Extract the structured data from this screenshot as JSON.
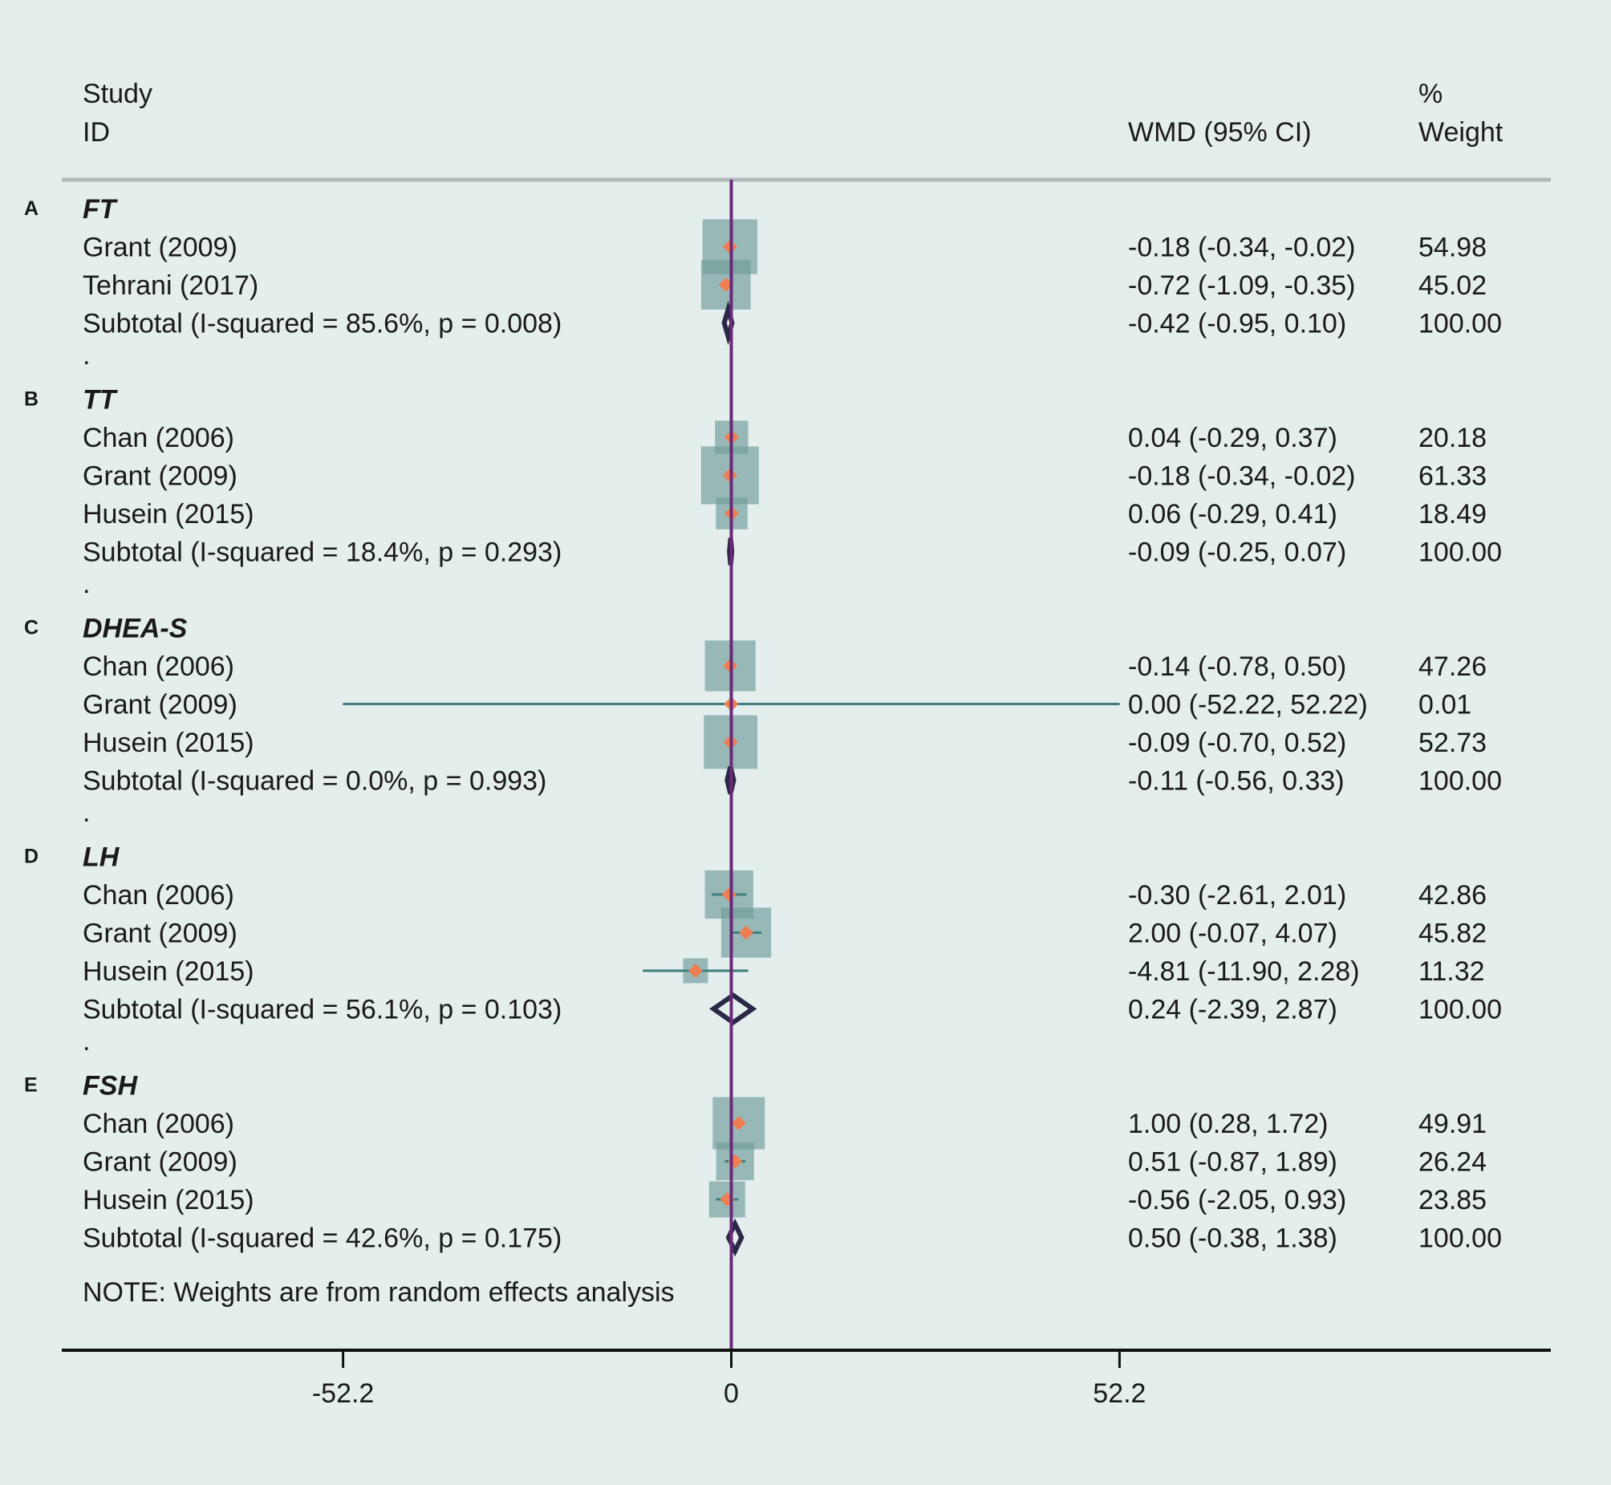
{
  "chart_data": {
    "type": "forest",
    "header": {
      "study_line1": "Study",
      "study_line2": "ID",
      "effect": "WMD (95% CI)",
      "weight_line1": "%",
      "weight_line2": "Weight"
    },
    "groups": [
      {
        "tag": "A",
        "name": "FT",
        "studies": [
          {
            "label": "Grant (2009)",
            "est": -0.18,
            "lo": -0.34,
            "hi": -0.02,
            "ci_text": "-0.18 (-0.34, -0.02)",
            "weight": 54.98,
            "weight_text": "54.98"
          },
          {
            "label": "Tehrani (2017)",
            "est": -0.72,
            "lo": -1.09,
            "hi": -0.35,
            "ci_text": "-0.72 (-1.09, -0.35)",
            "weight": 45.02,
            "weight_text": "45.02"
          }
        ],
        "subtotal": {
          "label": "Subtotal  (I-squared = 85.6%, p = 0.008)",
          "est": -0.42,
          "lo": -0.95,
          "hi": 0.1,
          "ci_text": "-0.42 (-0.95, 0.10)",
          "weight_text": "100.00"
        },
        "separator": "."
      },
      {
        "tag": "B",
        "name": "TT",
        "studies": [
          {
            "label": "Chan (2006)",
            "est": 0.04,
            "lo": -0.29,
            "hi": 0.37,
            "ci_text": "0.04 (-0.29, 0.37)",
            "weight": 20.18,
            "weight_text": "20.18"
          },
          {
            "label": "Grant (2009)",
            "est": -0.18,
            "lo": -0.34,
            "hi": -0.02,
            "ci_text": "-0.18 (-0.34, -0.02)",
            "weight": 61.33,
            "weight_text": "61.33"
          },
          {
            "label": "Husein (2015)",
            "est": 0.06,
            "lo": -0.29,
            "hi": 0.41,
            "ci_text": "0.06 (-0.29, 0.41)",
            "weight": 18.49,
            "weight_text": "18.49"
          }
        ],
        "subtotal": {
          "label": "Subtotal  (I-squared = 18.4%, p = 0.293)",
          "est": -0.09,
          "lo": -0.25,
          "hi": 0.07,
          "ci_text": "-0.09 (-0.25, 0.07)",
          "weight_text": "100.00"
        },
        "separator": "."
      },
      {
        "tag": "C",
        "name": "DHEA-S",
        "studies": [
          {
            "label": "Chan (2006)",
            "est": -0.14,
            "lo": -0.78,
            "hi": 0.5,
            "ci_text": "-0.14 (-0.78, 0.50)",
            "weight": 47.26,
            "weight_text": "47.26"
          },
          {
            "label": "Grant (2009)",
            "est": 0.0,
            "lo": -52.22,
            "hi": 52.22,
            "ci_text": "0.00 (-52.22, 52.22)",
            "weight": 0.01,
            "weight_text": "0.01"
          },
          {
            "label": "Husein (2015)",
            "est": -0.09,
            "lo": -0.7,
            "hi": 0.52,
            "ci_text": "-0.09 (-0.70, 0.52)",
            "weight": 52.73,
            "weight_text": "52.73"
          }
        ],
        "subtotal": {
          "label": "Subtotal  (I-squared = 0.0%, p = 0.993)",
          "est": -0.11,
          "lo": -0.56,
          "hi": 0.33,
          "ci_text": "-0.11 (-0.56, 0.33)",
          "weight_text": "100.00"
        },
        "separator": "."
      },
      {
        "tag": "D",
        "name": "LH",
        "studies": [
          {
            "label": "Chan (2006)",
            "est": -0.3,
            "lo": -2.61,
            "hi": 2.01,
            "ci_text": "-0.30 (-2.61, 2.01)",
            "weight": 42.86,
            "weight_text": "42.86"
          },
          {
            "label": "Grant (2009)",
            "est": 2.0,
            "lo": -0.07,
            "hi": 4.07,
            "ci_text": "2.00 (-0.07, 4.07)",
            "weight": 45.82,
            "weight_text": "45.82"
          },
          {
            "label": "Husein (2015)",
            "est": -4.81,
            "lo": -11.9,
            "hi": 2.28,
            "ci_text": "-4.81 (-11.90, 2.28)",
            "weight": 11.32,
            "weight_text": "11.32"
          }
        ],
        "subtotal": {
          "label": "Subtotal  (I-squared = 56.1%, p = 0.103)",
          "est": 0.24,
          "lo": -2.39,
          "hi": 2.87,
          "ci_text": "0.24 (-2.39, 2.87)",
          "weight_text": "100.00"
        },
        "separator": "."
      },
      {
        "tag": "E",
        "name": "FSH",
        "studies": [
          {
            "label": "Chan (2006)",
            "est": 1.0,
            "lo": 0.28,
            "hi": 1.72,
            "ci_text": "1.00 (0.28, 1.72)",
            "weight": 49.91,
            "weight_text": "49.91"
          },
          {
            "label": "Grant (2009)",
            "est": 0.51,
            "lo": -0.87,
            "hi": 1.89,
            "ci_text": "0.51 (-0.87, 1.89)",
            "weight": 26.24,
            "weight_text": "26.24"
          },
          {
            "label": "Husein (2015)",
            "est": -0.56,
            "lo": -2.05,
            "hi": 0.93,
            "ci_text": "-0.56 (-2.05, 0.93)",
            "weight": 23.85,
            "weight_text": "23.85"
          }
        ],
        "subtotal": {
          "label": "Subtotal  (I-squared = 42.6%, p = 0.175)",
          "est": 0.5,
          "lo": -0.38,
          "hi": 1.38,
          "ci_text": "0.50 (-0.38, 1.38)",
          "weight_text": "100.00"
        },
        "separator": ""
      }
    ],
    "note": "NOTE: Weights are from random effects analysis",
    "x_axis": {
      "range": [
        -94,
        115.5
      ],
      "ticks": [
        -52.2,
        0,
        52.2
      ],
      "tick_labels": [
        "-52.2",
        "0",
        "52.2"
      ]
    },
    "null_line": 0,
    "colors": {
      "background": "#e3eeed",
      "box": "#6f9b98",
      "point": "#ef7d52",
      "ci_line": "#3f7e80",
      "null_line": "#6b2a78",
      "diamond": "#2a2846",
      "axis": "#111111",
      "header_rule": "#b3b8ba",
      "text": "#1a1a1a"
    }
  }
}
